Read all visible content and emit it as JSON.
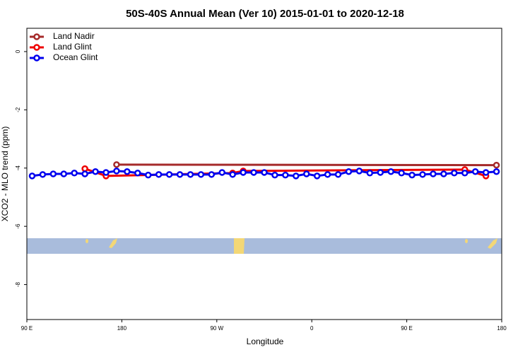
{
  "chart_data": {
    "type": "line",
    "title": "50S-40S Annual Mean (Ver 10)   2015-01-01 to 2020-12-18",
    "x_label": "Longitude",
    "y_label": "XCO2 - MLO trend (ppm)",
    "xlim": [
      90,
      540
    ],
    "ylim": [
      -9.2,
      0.8
    ],
    "xticks": [
      {
        "value": 90,
        "label": "90 E"
      },
      180,
      {
        "value": 270,
        "label": "90 W"
      },
      {
        "value": 360,
        "label": "0"
      },
      {
        "value": 450,
        "label": "90 E"
      },
      {
        "value": 540,
        "label": "180"
      }
    ],
    "yticks": [
      0,
      -2,
      -4,
      -6,
      -8
    ],
    "legend": "upper left",
    "series": [
      {
        "name": "Land Nadir",
        "color": "#a52a2a",
        "x": [
          175,
          535
        ],
        "values": [
          -3.88,
          -3.9
        ]
      },
      {
        "name": "Land Glint",
        "color": "#ee0000",
        "x": [
          145,
          165,
          285,
          295,
          505,
          525
        ],
        "values": [
          -4.02,
          -4.27,
          -4.17,
          -4.1,
          -4.05,
          -4.27
        ]
      },
      {
        "name": "Ocean Glint",
        "color": "#0000ee",
        "x": [
          95,
          105,
          115,
          125,
          135,
          145,
          155,
          165,
          175,
          185,
          195,
          205,
          215,
          225,
          235,
          245,
          255,
          265,
          275,
          285,
          295,
          305,
          315,
          325,
          335,
          345,
          355,
          365,
          375,
          385,
          395,
          405,
          415,
          425,
          435,
          445,
          455,
          465,
          475,
          485,
          495,
          505,
          515,
          525,
          535
        ],
        "values": [
          -4.27,
          -4.22,
          -4.2,
          -4.2,
          -4.17,
          -4.2,
          -4.12,
          -4.15,
          -4.1,
          -4.12,
          -4.17,
          -4.24,
          -4.22,
          -4.22,
          -4.22,
          -4.22,
          -4.22,
          -4.22,
          -4.15,
          -4.22,
          -4.15,
          -4.15,
          -4.15,
          -4.24,
          -4.24,
          -4.27,
          -4.2,
          -4.27,
          -4.22,
          -4.22,
          -4.12,
          -4.1,
          -4.17,
          -4.15,
          -4.12,
          -4.17,
          -4.24,
          -4.22,
          -4.2,
          -4.2,
          -4.17,
          -4.17,
          -4.12,
          -4.15,
          -4.12
        ]
      }
    ]
  }
}
